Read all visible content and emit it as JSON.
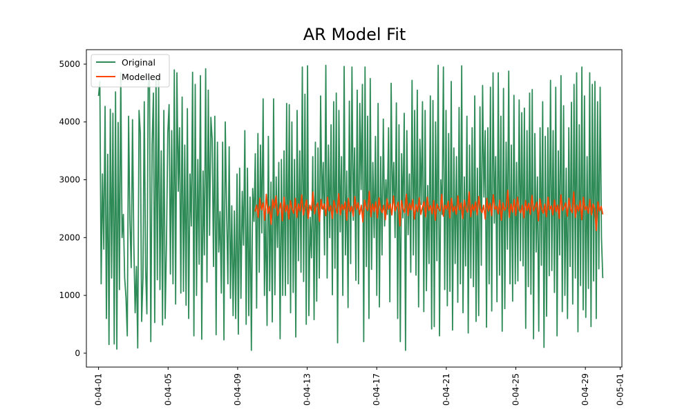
{
  "chart_data": {
    "type": "line",
    "title": "AR Model Fit",
    "xlabel": "",
    "ylabel": "",
    "x_tick_labels": [
      "0-04-01",
      "0-04-05",
      "0-04-09",
      "0-04-13",
      "0-04-17",
      "0-04-21",
      "0-04-25",
      "0-04-29",
      "0-05-01"
    ],
    "y_ticks": [
      0,
      1000,
      2000,
      3000,
      4000,
      5000
    ],
    "xlim": [
      "0-03-31.3",
      "0-05-01.1"
    ],
    "ylim": [
      -240,
      5250
    ],
    "grid": false,
    "legend_position": "top-left",
    "series": [
      {
        "name": "Original",
        "color": "#2e8b57",
        "x_start": "0-04-01",
        "x_end": "0-04-30",
        "values": [
          4450,
          4700,
          1200,
          3100,
          1800,
          4270,
          600,
          3440,
          150,
          4220,
          1300,
          4150,
          160,
          4520,
          70,
          3990,
          1100,
          4850,
          2000,
          2400,
          1300,
          970,
          300,
          4100,
          2300,
          1480,
          4040,
          1900,
          700,
          1500,
          90,
          4200,
          3800,
          550,
          1300,
          4350,
          1480,
          680,
          4650,
          4750,
          200,
          3600,
          4500,
          530,
          4800,
          1270,
          4750,
          1100,
          3500,
          490,
          4200,
          600,
          1900,
          3800,
          4300,
          1370,
          3850,
          1200,
          4900,
          850,
          4850,
          2800,
          3900,
          1040,
          4430,
          1070,
          3600,
          830,
          4230,
          600,
          3100,
          2200,
          4860,
          300,
          4650,
          1000,
          3350,
          1540,
          4800,
          240,
          3150,
          1700,
          4920,
          1230,
          4550,
          2040,
          4080,
          3700,
          1500,
          4100,
          320,
          3650,
          1750,
          2450,
          1040,
          3650,
          230,
          4000,
          2500,
          1200,
          3570,
          950,
          2550,
          650,
          2460,
          600,
          3100,
          330,
          3200,
          950,
          2800,
          1870,
          3850,
          500,
          3200,
          650,
          2700,
          50,
          2850,
          2280,
          3450,
          780,
          3800,
          1400,
          3600,
          2080,
          4400,
          1000,
          2500,
          480,
          3750,
          1080,
          2960,
          540,
          4400,
          1010,
          3050,
          1830,
          3300,
          250,
          3350,
          1000,
          3500,
          1000,
          4320,
          1200,
          4300,
          700,
          4000,
          1050,
          3350,
          280,
          4200,
          1600,
          3500,
          1400,
          4950,
          1240,
          4480,
          500,
          4970,
          650,
          2350,
          1650,
          3400,
          580,
          3650,
          900,
          3550,
          1300,
          4450,
          2500,
          3300,
          1700,
          4980,
          1300,
          3600,
          2000,
          3950,
          1010,
          4350,
          1470,
          4500,
          180,
          4200,
          2100,
          3400,
          1000,
          4960,
          1700,
          3150,
          790,
          4360,
          1550,
          4950,
          2300,
          3550,
          1260,
          4550,
          1200,
          4320,
          2830,
          4650,
          200,
          4950,
          1500,
          4100,
          600,
          4750,
          1450,
          3300,
          2000,
          3750,
          1000,
          4320,
          800,
          3400,
          1700,
          4050,
          2200,
          3000,
          2400,
          3900,
          890,
          4670,
          2500,
          3300,
          2000,
          4330,
          600,
          3950,
          200,
          3450,
          2340,
          4150,
          50,
          3850,
          2050,
          3100,
          1400,
          4720,
          1700,
          4200,
          1350,
          4550,
          800,
          3700,
          2570,
          4350,
          720,
          4200,
          1080,
          2900,
          1550,
          4450,
          420,
          4370,
          460,
          4000,
          1600,
          4980,
          300,
          3000,
          2400,
          4950,
          1100,
          4200,
          820,
          3800,
          1070,
          4700,
          400,
          3550,
          1550,
          3400,
          880,
          4250,
          1200,
          4970,
          700,
          3050,
          1510,
          4100,
          350,
          3600,
          1300,
          3900,
          1150,
          4450,
          550,
          3200,
          650,
          4260,
          1520,
          4630,
          2700,
          3850,
          450,
          3900,
          1200,
          4600,
          730,
          4850,
          2250,
          3400,
          890,
          4850,
          1350,
          4100,
          380,
          4580,
          770,
          3650,
          1800,
          4880,
          1200,
          3600,
          900,
          4460,
          1200,
          3300,
          1250,
          4380,
          1600,
          4160,
          1510,
          4240,
          430,
          3850,
          1150,
          4500,
          1020,
          4560,
          250,
          3800,
          1750,
          3050,
          380,
          3900,
          1520,
          4350,
          100,
          3750,
          640,
          3900,
          1340,
          4720,
          1430,
          3850,
          1050,
          4600,
          300,
          3500,
          1700,
          4800,
          720,
          4280,
          1000,
          3200,
          600,
          3900,
          1500,
          4340,
          850,
          4650,
          1300,
          4850,
          370,
          3950,
          1170,
          4950,
          750,
          4450,
          620,
          3400,
          1120,
          4850,
          460,
          4650,
          1250,
          4700,
          600,
          4350,
          1460,
          4600,
          2000,
          1300
        ]
      },
      {
        "name": "Modelled",
        "color": "#ff4500",
        "x_start": "0-04-10",
        "x_end": "0-04-30",
        "values": [
          2450,
          2560,
          2350,
          2680,
          2480,
          2600,
          2300,
          2750,
          2420,
          2540,
          2230,
          2660,
          2510,
          2720,
          2380,
          2480,
          2600,
          2290,
          2700,
          2450,
          2560,
          2320,
          2640,
          2500,
          2420,
          2680,
          2350,
          2580,
          2460,
          2740,
          2390,
          2520,
          2650,
          2330,
          2560,
          2470,
          2790,
          2410,
          2540,
          2600,
          2280,
          2660,
          2490,
          2580,
          2380,
          2700,
          2460,
          2550,
          2330,
          2640,
          2510,
          2420,
          2760,
          2390,
          2570,
          2480,
          2620,
          2300,
          2680,
          2450,
          2540,
          2370,
          2710,
          2490,
          2600,
          2400,
          2560,
          2270,
          2650,
          2520,
          2470,
          2800,
          2360,
          2580,
          2450,
          2620,
          2340,
          2690,
          2500,
          2430,
          2560,
          2310,
          2670,
          2490,
          2580,
          2390,
          2720,
          2460,
          2540,
          2610,
          2200,
          2640,
          2500,
          2430,
          2750,
          2380,
          2590,
          2480,
          2660,
          2320,
          2570,
          2450,
          2690,
          2400,
          2530,
          2620,
          2360,
          2700,
          2470,
          2550,
          2410,
          2640,
          2300,
          2580,
          2500,
          2460,
          2750,
          2370,
          2560,
          2490,
          2630,
          2340,
          2680,
          2450,
          2540,
          2400,
          2720,
          2480,
          2600,
          2330,
          2650,
          2510,
          2440,
          2790,
          2360,
          2570,
          2470,
          2620,
          2390,
          2710,
          2500,
          2430,
          2560,
          2320,
          2680,
          2460,
          2590,
          2380,
          2740,
          2490,
          2540,
          2410,
          2650,
          2300,
          2600,
          2470,
          2520,
          2820,
          2350,
          2580,
          2440,
          2660,
          2380,
          2700,
          2490,
          2430,
          2560,
          2340,
          2640,
          2470,
          2590,
          2400,
          2730,
          2460,
          2530,
          2610,
          2290,
          2670,
          2500,
          2420,
          2580,
          2360,
          2700,
          2480,
          2550,
          2390,
          2650,
          2450,
          2560,
          2330,
          2740,
          2470,
          2520,
          2600,
          2370,
          2680,
          2490,
          2430,
          2790,
          2350,
          2560,
          2460,
          2640,
          2310,
          2700,
          2480,
          2540,
          2420,
          2660,
          2390,
          2580,
          2500,
          2120,
          2620,
          2460,
          2540,
          2400
        ]
      }
    ]
  }
}
